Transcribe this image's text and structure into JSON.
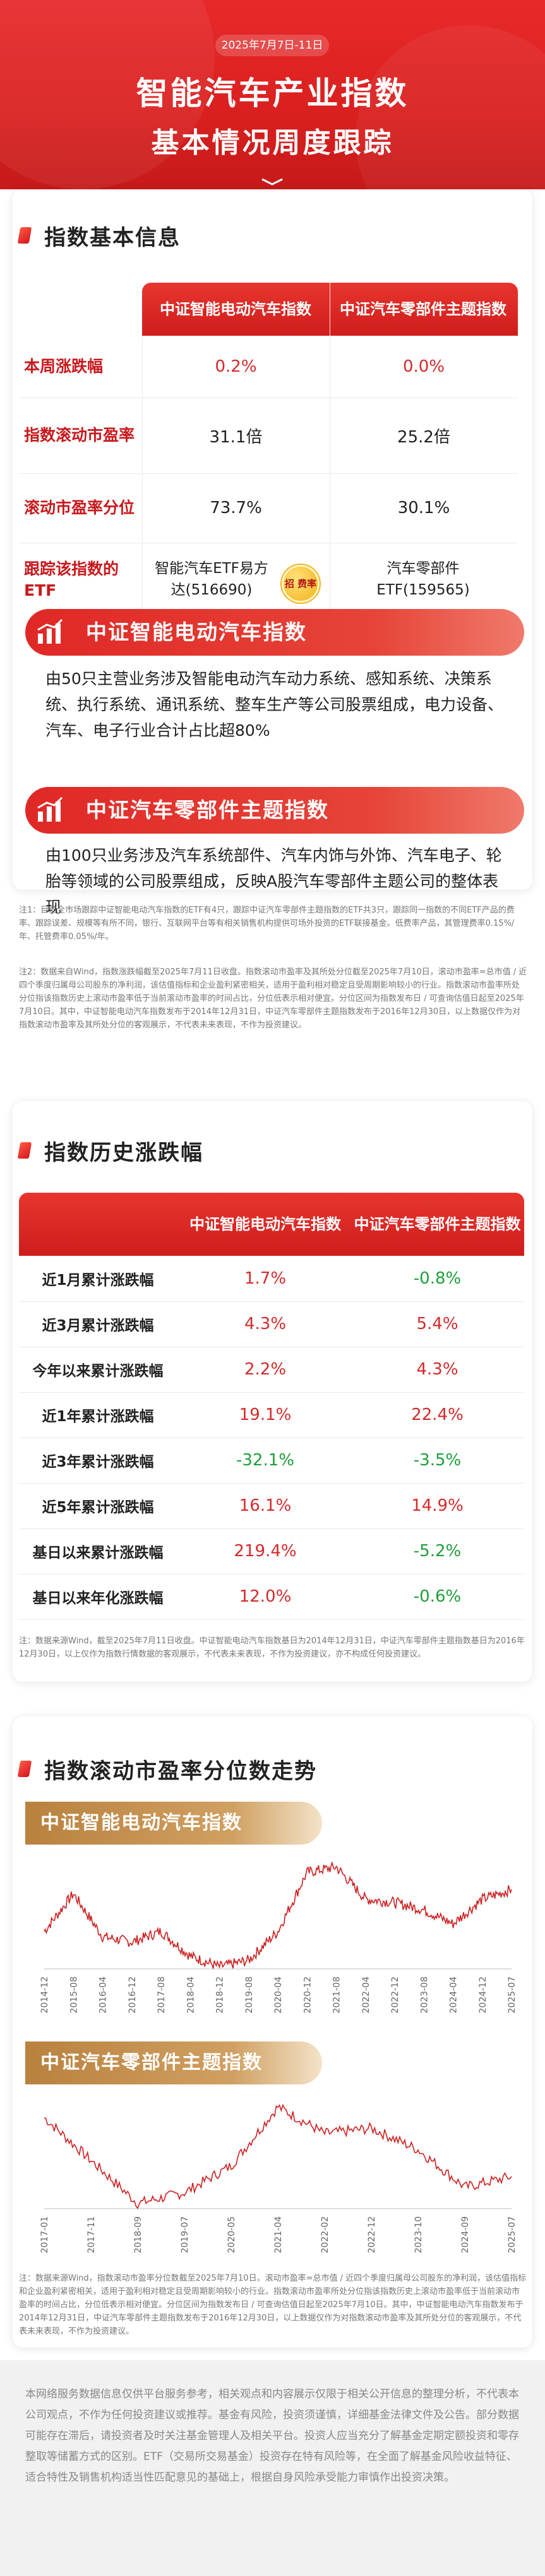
{
  "header": {
    "date": "2025年7月7日-11日",
    "title_line1": "智能汽车产业指数",
    "title_line2": "基本情况周度跟踪"
  },
  "section1": {
    "title": "指数基本信息",
    "col1": "中证智能电动汽车指数",
    "col2": "中证汽车零部件主题指数",
    "rows": [
      {
        "label": "本周涨跌幅",
        "v1": "0.2%",
        "v2": "0.0%"
      },
      {
        "label": "指数滚动市盈率",
        "v1": "31.1倍",
        "v2": "25.2倍"
      },
      {
        "label": "滚动市盈率分位",
        "v1": "73.7%",
        "v2": "30.1%"
      },
      {
        "label": "跟踪该指数的ETF",
        "v1": "智能汽车ETF易方达(516690)",
        "v2": "汽车零部件ETF(159565)"
      }
    ],
    "badge": "招 费率"
  },
  "index1": {
    "name": "中证智能电动汽车指数",
    "desc": "由50只主营业务涉及智能电动汽车动力系统、感知系统、决策系统、执行系统、通讯系统、整车生产等公司股票组成，电力设备、汽车、电子行业合计占比超80%"
  },
  "index2": {
    "name": "中证汽车零部件主题指数",
    "desc": "由100只业务涉及汽车系统部件、汽车内饰与外饰、汽车电子、轮胎等领域的公司股票组成，反映A股汽车零部件主题公司的整体表现"
  },
  "notes1": [
    "注1：目前全市场跟踪中证智能电动汽车指数的ETF有4只，跟踪中证汽车零部件主题指数的ETF共3只，跟踪同一指数的不同ETF产品的费率、跟踪误差、规模等有所不同，银行、互联网平台等有相关销售机构提供可场外投资的ETF联接基金。低费率产品，其管理费率0.15%/年、托管费率0.05%/年。",
    "注2：数据来自Wind，指数涨跌幅截至2025年7月11日收盘。指数滚动市盈率及其所处分位截至2025年7月10日，滚动市盈率=总市值 / 近四个季度归属母公司股东的净利润，该估值指标和企业盈利紧密相关，适用于盈利相对稳定且受周期影响较小的行业。指数滚动市盈率所处分位指该指数历史上滚动市盈率低于当前滚动市盈率的时间占比，分位低表示相对便宜。分位区间为指数发布日 / 可查询估值日起至2025年7月10日。其中，中证智能电动汽车指数发布于2014年12月31日，中证汽车零部件主题指数发布于2016年12月30日，以上数据仅作为对指数滚动市盈率及其所处分位的客观展示，不代表未来表现，不作为投资建议。"
  ],
  "section2": {
    "title": "指数历史涨跌幅",
    "col1": "中证智能电动汽车指数",
    "col2": "中证汽车零部件主题指数",
    "rows": [
      {
        "label": "近1月累计涨跌幅",
        "v1": "1.7%",
        "v2": "-0.8%"
      },
      {
        "label": "近3月累计涨跌幅",
        "v1": "4.3%",
        "v2": "5.4%"
      },
      {
        "label": "今年以来累计涨跌幅",
        "v1": "2.2%",
        "v2": "4.3%"
      },
      {
        "label": "近1年累计涨跌幅",
        "v1": "19.1%",
        "v2": "22.4%"
      },
      {
        "label": "近3年累计涨跌幅",
        "v1": "-32.1%",
        "v2": "-3.5%"
      },
      {
        "label": "近5年累计涨跌幅",
        "v1": "16.1%",
        "v2": "14.9%"
      },
      {
        "label": "基日以来累计涨跌幅",
        "v1": "219.4%",
        "v2": "-5.2%"
      },
      {
        "label": "基日以来年化涨跌幅",
        "v1": "12.0%",
        "v2": "-0.6%"
      }
    ],
    "note": "注：数据来源Wind，截至2025年7月11日收盘。中证智能电动汽车指数基日为2014年12月31日，中证汽车零部件主题指数基日为2016年12月30日，以上仅作为指数行情数据的客观展示，不代表未来表现，不作为投资建议，亦不构成任何投资建议。"
  },
  "section3": {
    "title": "指数滚动市盈率分位数走势",
    "chart1_title": "中证智能电动汽车指数",
    "chart2_title": "中证汽车零部件主题指数",
    "note": "注：数据来源Wind，指数滚动市盈率分位数截至2025年7月10日。滚动市盈率=总市值 / 近四个季度归属母公司股东的净利润，该估值指标和企业盈利紧密相关，适用于盈利相对稳定且受周期影响较小的行业。指数滚动市盈率所处分位指该指数历史上滚动市盈率低于当前滚动市盈率的时间占比，分位低表示相对便宜。分位区间为指数发布日 / 可查询估值日起至2025年7月10日。其中，中证智能电动汽车指数发布于2014年12月31日，中证汽车零部件主题指数发布于2016年12月30日，以上数据仅作为对指数滚动市盈率及其所处分位的客观展示，不代表未来表现，不作为投资建议。"
  },
  "chart_data": [
    {
      "type": "line",
      "title": "中证智能电动汽车指数",
      "x": [
        "2014-12",
        "2015-08",
        "2016-04",
        "2016-12",
        "2017-08",
        "2018-04",
        "2018-12",
        "2019-08",
        "2020-04",
        "2020-12",
        "2021-08",
        "2022-04",
        "2022-12",
        "2023-08",
        "2024-04",
        "2024-12",
        "2025-07"
      ],
      "series": [
        {
          "values": [
            35,
            70,
            30,
            25,
            35,
            12,
            2,
            8,
            35,
            90,
            95,
            65,
            62,
            55,
            42,
            65,
            74
          ]
        }
      ],
      "ylim": [
        0,
        100
      ]
    },
    {
      "type": "line",
      "title": "中证汽车零部件主题指数",
      "x": [
        "2017-01",
        "2017-11",
        "2018-09",
        "2019-07",
        "2020-05",
        "2021-04",
        "2022-02",
        "2022-12",
        "2023-10",
        "2024-09",
        "2025-07"
      ],
      "series": [
        {
          "values": [
            85,
            45,
            5,
            15,
            40,
            95,
            70,
            75,
            55,
            20,
            30
          ]
        }
      ],
      "ylim": [
        0,
        100
      ]
    }
  ],
  "disclaimer": "本网络服务数据信息仅供平台服务参考，相关观点和内容展示仅限于相关公开信息的整理分析，不代表本公司观点，不作为任何投资建议或推荐。基金有风险，投资须谨慎，详细基金法律文件及公告。部分数据可能存在滞后，请投资者及时关注基金管理人及相关平台。投资人应当充分了解基金定期定额投资和零存整取等储蓄方式的区别。ETF（交易所交易基金）投资存在特有风险等，在全面了解基金风险收益特征、适合特性及销售机构适当性匹配意见的基础上，根据自身风险承受能力审慎作出投资决策。"
}
